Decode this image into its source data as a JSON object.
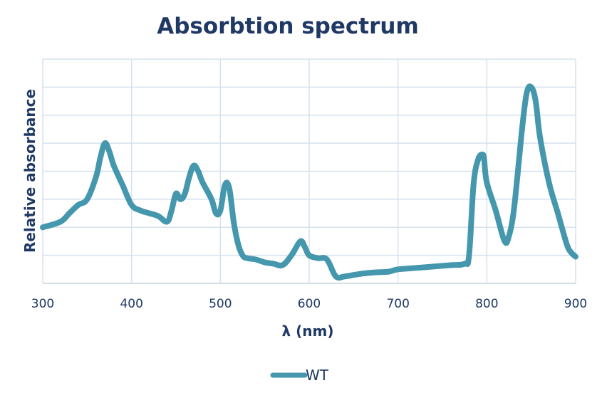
{
  "colors": {
    "series": "#4597ad",
    "text": "#1f3864",
    "grid": "#d5e2ee"
  },
  "chart_data": {
    "type": "line",
    "title": "Absorbtion spectrum",
    "xlabel": "λ (nm)",
    "ylabel": "Relative absorbance",
    "xlim": [
      300,
      900
    ],
    "ylim": [
      0,
      8
    ],
    "xticks": [
      300,
      400,
      500,
      600,
      700,
      800,
      900
    ],
    "xtick_labels": [
      "300",
      "400",
      "500",
      "600",
      "700",
      "800",
      "900"
    ],
    "yticks": [
      0,
      1,
      2,
      3,
      4,
      5,
      6,
      7,
      8
    ],
    "ytick_labels_shown": false,
    "grid": true,
    "legend": "bottom",
    "series": [
      {
        "name": "WT",
        "x": [
          300,
          320,
          330,
          340,
          350,
          360,
          365,
          370,
          375,
          380,
          390,
          400,
          410,
          420,
          430,
          440,
          445,
          450,
          455,
          460,
          465,
          470,
          475,
          480,
          490,
          495,
          500,
          505,
          510,
          515,
          520,
          525,
          530,
          540,
          550,
          560,
          570,
          580,
          590,
          595,
          600,
          610,
          620,
          630,
          640,
          650,
          660,
          670,
          680,
          690,
          700,
          720,
          740,
          760,
          775,
          780,
          785,
          790,
          795,
          797,
          800,
          810,
          820,
          825,
          830,
          835,
          840,
          845,
          850,
          855,
          860,
          870,
          880,
          890,
          895,
          900
        ],
        "y": [
          2.0,
          2.2,
          2.5,
          2.8,
          3.0,
          3.8,
          4.5,
          5.0,
          4.7,
          4.2,
          3.5,
          2.8,
          2.6,
          2.5,
          2.4,
          2.2,
          2.6,
          3.2,
          3.0,
          3.2,
          3.8,
          4.2,
          4.0,
          3.6,
          3.0,
          2.5,
          2.6,
          3.5,
          3.4,
          2.2,
          1.4,
          1.0,
          0.9,
          0.85,
          0.75,
          0.7,
          0.65,
          1.0,
          1.5,
          1.3,
          1.0,
          0.9,
          0.85,
          0.25,
          0.25,
          0.3,
          0.35,
          0.38,
          0.4,
          0.42,
          0.5,
          0.55,
          0.6,
          0.65,
          0.7,
          1.0,
          3.5,
          4.4,
          4.6,
          4.4,
          3.6,
          2.6,
          1.5,
          1.7,
          2.5,
          4.0,
          5.6,
          6.8,
          7.0,
          6.5,
          5.2,
          3.6,
          2.5,
          1.4,
          1.1,
          0.95
        ]
      }
    ]
  }
}
